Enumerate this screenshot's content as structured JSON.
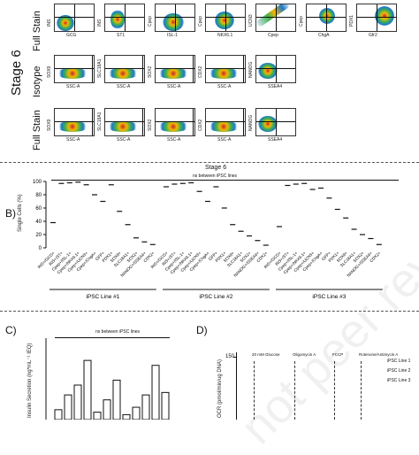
{
  "panel_a": {
    "stage_title": "Stage 6",
    "rows": [
      {
        "label": "Full Stain",
        "plots": [
          {
            "y": "INS",
            "x": "GCG"
          },
          {
            "y": "INS",
            "x": "ST1"
          },
          {
            "y": "Cpep",
            "x": "ISL-1"
          },
          {
            "y": "Cpep",
            "x": "NKX6.1"
          },
          {
            "y": "UCN3",
            "x": "Cpep"
          },
          {
            "y": "Cpep",
            "x": "ChgA"
          },
          {
            "y": "PDX1",
            "x": "Gfr2"
          }
        ]
      },
      {
        "label": "Isotype",
        "plots": [
          {
            "y": "SOX9",
            "x": "SSC-A"
          },
          {
            "y": "SLC18A1",
            "x": "SSC-A"
          },
          {
            "y": "SOX2",
            "x": "SSC-A"
          },
          {
            "y": "CDX2",
            "x": "SSC-A"
          },
          {
            "y": "NANOG",
            "x": "SSEA4"
          }
        ]
      },
      {
        "label": "Full Stain",
        "plots": [
          {
            "y": "SOX9",
            "x": "SSC-A"
          },
          {
            "y": "SLC18A1",
            "x": "SSC-A"
          },
          {
            "y": "SOX2",
            "x": "SSC-A"
          },
          {
            "y": "CDX2",
            "x": "SSC-A"
          },
          {
            "y": "NANOG",
            "x": "SSEA4"
          }
        ]
      }
    ]
  },
  "panel_b": {
    "letter": "B)",
    "stage_title": "Stage 6",
    "ns_text": "ns between iPSC lines",
    "chart_data": {
      "type": "scatter",
      "ylabel": "Single Cells (%)",
      "ylim": [
        0,
        100
      ],
      "yticks": [
        "100",
        "80",
        "60",
        "40",
        "20",
        "0"
      ],
      "categories": [
        "INS+/GCG+",
        "INS+/ST+",
        "Cpep+/ISL-1+",
        "Cpep+/NKX6.1+",
        "Cpep+/UCN3+",
        "Cpep+/ChgA+",
        "GFP+",
        "PDX1+",
        "SOX9+",
        "SLC18A1+",
        "SOX2+",
        "NANOG+/SSEA4+",
        "CDX2+"
      ],
      "groups": [
        "iPSC Line #1",
        "iPSC Line #2",
        "iPSC Line #3"
      ],
      "series": [
        {
          "values": [
            38,
            97,
            98,
            99,
            95,
            80,
            70,
            95,
            55,
            35,
            15,
            9,
            5
          ]
        },
        {
          "values": [
            92,
            96,
            97,
            98,
            85,
            70,
            92,
            60,
            35,
            25,
            18,
            11,
            4
          ]
        },
        {
          "values": [
            32,
            94,
            96,
            97,
            88,
            90,
            75,
            58,
            45,
            28,
            20,
            14,
            5
          ]
        }
      ]
    }
  },
  "panel_c": {
    "letter": "C)",
    "ns_text": "ns between iPSC lines",
    "chart_data": {
      "type": "bar",
      "ylabel": "Insulin Secretion (ng*mL⁻¹ IEQ)",
      "values": [
        0.4,
        1.0,
        1.4,
        2.4,
        0.3,
        0.8,
        1.6,
        0.2,
        0.5,
        1.0,
        2.2,
        1.1
      ]
    }
  },
  "panel_d": {
    "letter": "D)",
    "ylabel": "OCR (pmol/min/ug DNA)",
    "ytick_top": "150",
    "treatments": [
      "20 mM Glucose",
      "Oligomycin A",
      "FCCP",
      "Rotenone/Antimycin A"
    ],
    "legend": [
      "iPSC Line 1",
      "iPSC Line 2",
      "iPSC Line 3"
    ]
  }
}
